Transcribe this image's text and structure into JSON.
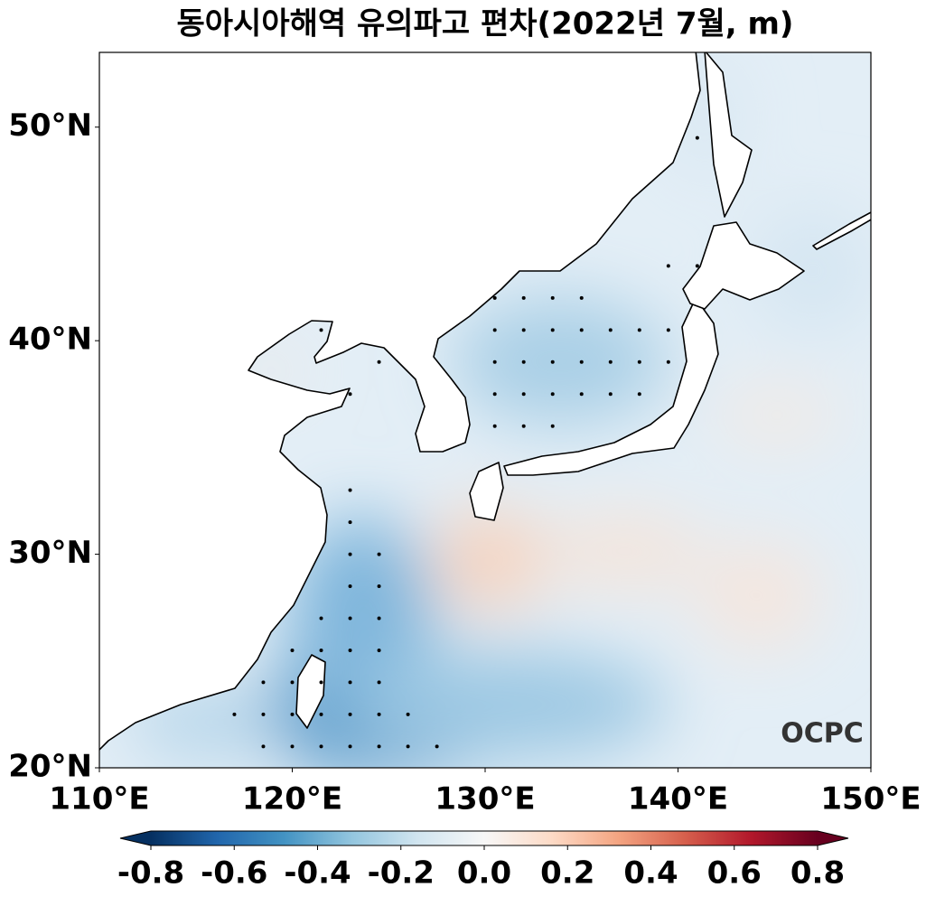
{
  "chart_data": {
    "type": "map",
    "title": "동아시아해역 유의파고 편차(2022년 7월, m)",
    "xlim": [
      110,
      150
    ],
    "ylim": [
      20,
      53.5
    ],
    "xticks": [
      {
        "value": 110,
        "label": "110°E"
      },
      {
        "value": 120,
        "label": "120°E"
      },
      {
        "value": 130,
        "label": "130°E"
      },
      {
        "value": 140,
        "label": "140°E"
      },
      {
        "value": 150,
        "label": "150°E"
      }
    ],
    "yticks": [
      {
        "value": 20,
        "label": "20°N"
      },
      {
        "value": 30,
        "label": "30°N"
      },
      {
        "value": 40,
        "label": "40°N"
      },
      {
        "value": 50,
        "label": "50°N"
      }
    ],
    "colorbar": {
      "lim": [
        -0.8,
        0.8
      ],
      "ticks": [
        -0.8,
        -0.6,
        -0.4,
        -0.2,
        {
          "value": 0,
          "label": "0.0"
        },
        0.2,
        0.4,
        0.6,
        0.8
      ],
      "colors": [
        "#053061",
        "#2166ac",
        "#4393c3",
        "#92c5de",
        "#d1e5f0",
        "#f7f7f7",
        "#fddbc7",
        "#f4a582",
        "#d6604d",
        "#b2182b",
        "#67001f"
      ],
      "extend": "both"
    },
    "significance_points": {
      "x": [
        130.5,
        132,
        133.5,
        135,
        121.5,
        130.5,
        132,
        133.5,
        135,
        136.5,
        138,
        139.5,
        124.5,
        130.5,
        132,
        133.5,
        135,
        136.5,
        138,
        139.5,
        123,
        130.5,
        132,
        133.5,
        135,
        136.5,
        138,
        130.5,
        132,
        133.5,
        139.5,
        141,
        141,
        123,
        123,
        123,
        124.5,
        123,
        124.5,
        121.5,
        123,
        124.5,
        120,
        121.5,
        123,
        124.5,
        118.5,
        120,
        121.5,
        123,
        124.5,
        117,
        118.5,
        120,
        121.5,
        123,
        124.5,
        126,
        118.5,
        120,
        121.5,
        123,
        124.5,
        126,
        127.5
      ],
      "y": [
        42,
        42,
        42,
        42,
        40.5,
        40.5,
        40.5,
        40.5,
        40.5,
        40.5,
        40.5,
        40.5,
        39,
        39,
        39,
        39,
        39,
        39,
        39,
        39,
        37.5,
        37.5,
        37.5,
        37.5,
        37.5,
        37.5,
        37.5,
        36,
        36,
        36,
        43.5,
        43.5,
        49.5,
        33,
        31.5,
        30,
        30,
        28.5,
        28.5,
        27,
        27,
        27,
        25.5,
        25.5,
        25.5,
        25.5,
        24,
        24,
        24,
        24,
        24,
        22.5,
        22.5,
        22.5,
        22.5,
        22.5,
        22.5,
        22.5,
        21,
        21,
        21,
        21,
        21,
        21,
        21
      ]
    },
    "logo": "OCPC"
  }
}
